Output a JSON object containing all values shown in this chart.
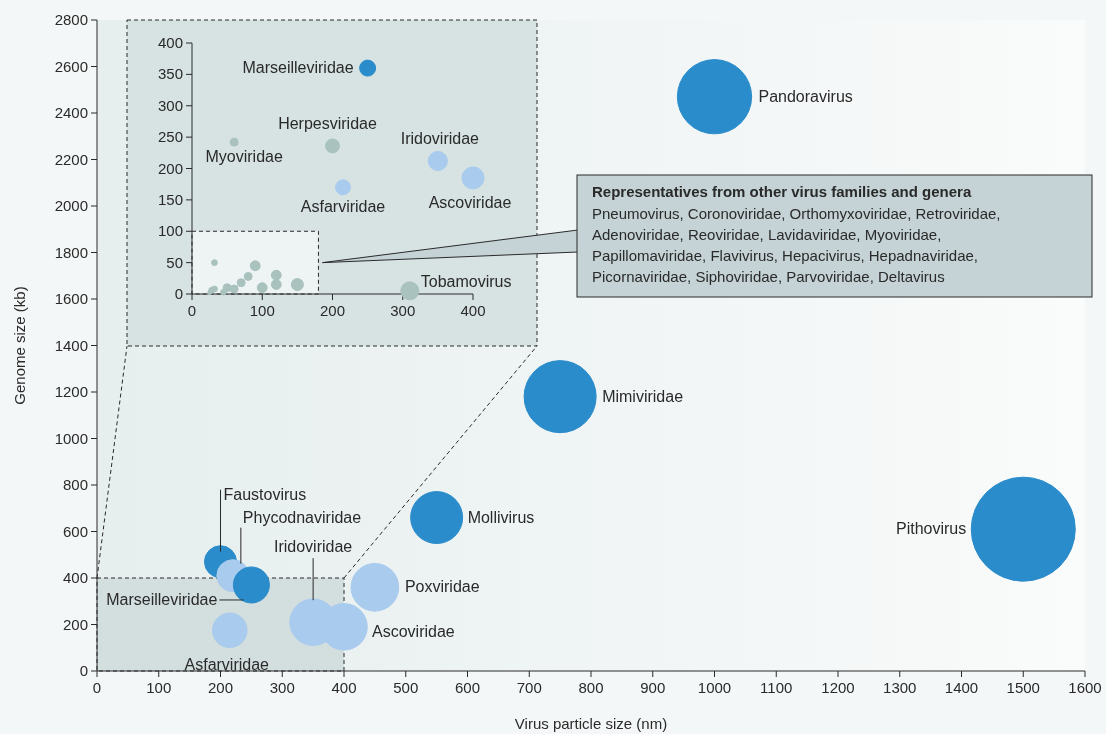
{
  "chart_data": [
    {
      "type": "bubble",
      "xlabel": "Virus particle size (nm)",
      "ylabel": "Genome size (kb)",
      "xlim": [
        0,
        1600
      ],
      "ylim": [
        0,
        2800
      ],
      "xticks": [
        0,
        100,
        200,
        300,
        400,
        500,
        600,
        700,
        800,
        900,
        1000,
        1100,
        1200,
        1300,
        1400,
        1500,
        1600
      ],
      "yticks": [
        0,
        200,
        400,
        600,
        800,
        1000,
        1200,
        1400,
        1600,
        1800,
        2000,
        2200,
        2400,
        2600,
        2800
      ],
      "series": [
        {
          "name": "Pandoravirus",
          "color": "#2a8ccb",
          "x": [
            1000
          ],
          "values": [
            2470
          ],
          "sizes": [
            0.51
          ]
        },
        {
          "name": "Mimiviridae",
          "color": "#2a8ccb",
          "x": [
            750
          ],
          "values": [
            1180
          ],
          "sizes": [
            0.48
          ]
        },
        {
          "name": "Mollivirus",
          "color": "#2a8ccb",
          "x": [
            550
          ],
          "values": [
            660
          ],
          "sizes": [
            0.25
          ]
        },
        {
          "name": "Pithovirus",
          "color": "#2a8ccb",
          "x": [
            1500
          ],
          "values": [
            610
          ],
          "sizes": [
            1
          ]
        },
        {
          "name": "Faustovirus",
          "color": "#2a8ccb",
          "x": [
            200
          ],
          "values": [
            470
          ],
          "sizes": [
            0.095
          ]
        },
        {
          "name": "Phycodnaviridae",
          "color": "#a8cbee",
          "x": [
            220
          ],
          "values": [
            410
          ],
          "sizes": [
            0.095
          ]
        },
        {
          "name": "Marseilleviridae",
          "color": "#2a8ccb",
          "x": [
            250
          ],
          "values": [
            370
          ],
          "sizes": [
            0.12
          ]
        },
        {
          "name": "Poxviridae",
          "color": "#a8cbee",
          "x": [
            450
          ],
          "values": [
            360
          ],
          "sizes": [
            0.21
          ]
        },
        {
          "name": "Iridoviridae",
          "color": "#a8cbee",
          "x": [
            350
          ],
          "values": [
            210
          ],
          "sizes": [
            0.2
          ]
        },
        {
          "name": "Ascoviridae",
          "color": "#a8cbee",
          "x": [
            400
          ],
          "values": [
            190
          ],
          "sizes": [
            0.2
          ]
        },
        {
          "name": "Asfarviridae",
          "color": "#a8cbee",
          "x": [
            215
          ],
          "values": [
            175
          ],
          "sizes": [
            0.11
          ]
        }
      ]
    },
    {
      "type": "bubble",
      "xlim": [
        0,
        400
      ],
      "ylim": [
        0,
        400
      ],
      "xticks": [
        0,
        100,
        200,
        300,
        400
      ],
      "yticks": [
        0,
        50,
        100,
        150,
        200,
        250,
        300,
        350,
        400
      ],
      "annotations": [
        "Representatives from other virus families and genera",
        "Pneumovirus, Coronoviridae, Orthomyxoviridae, Retroviridae, Adenoviridae, Reoviridae, Lavidaviridae, Myoviridae, Papillomaviridae, Flavivirus, Hepacivirus, Hepadnaviridae, Picornaviridae, Siphoviridae, Parvoviridae, Deltavirus"
      ],
      "series": [
        {
          "name": "Marseilleviridae",
          "color": "#2a8ccb",
          "x": [
            250
          ],
          "values": [
            360
          ],
          "sizes": [
            0.53
          ]
        },
        {
          "name": "Herpesviridae",
          "color": "#a9c2be",
          "x": [
            200
          ],
          "values": [
            236
          ],
          "sizes": [
            0.4
          ]
        },
        {
          "name": "Myoviridae",
          "color": "#a9c2be",
          "x": [
            60
          ],
          "values": [
            242
          ],
          "sizes": [
            0.13
          ]
        },
        {
          "name": "Iridoviridae",
          "color": "#a8cbee",
          "x": [
            350
          ],
          "values": [
            212
          ],
          "sizes": [
            0.75
          ]
        },
        {
          "name": "Ascoviridae",
          "color": "#a8cbee",
          "x": [
            400
          ],
          "values": [
            185
          ],
          "sizes": [
            1
          ]
        },
        {
          "name": "Asfarviridae",
          "color": "#a8cbee",
          "x": [
            215
          ],
          "values": [
            170
          ],
          "sizes": [
            0.46
          ]
        },
        {
          "name": "Tobamovirus",
          "color": "#a9c2be",
          "x": [
            310
          ],
          "values": [
            5
          ],
          "sizes": [
            0.67
          ]
        },
        {
          "color": "#a9c2be",
          "x": [
            25,
            28,
            32,
            32,
            45,
            50,
            60,
            70,
            80,
            90,
            100,
            120,
            120,
            150
          ],
          "values": [
            2,
            6,
            8,
            50,
            3,
            10,
            8,
            18,
            28,
            45,
            10,
            15,
            30,
            15
          ],
          "sizes": [
            0.03,
            0.07,
            0.07,
            0.07,
            0.07,
            0.13,
            0.13,
            0.13,
            0.13,
            0.2,
            0.2,
            0.2,
            0.2,
            0.3
          ]
        }
      ]
    }
  ]
}
